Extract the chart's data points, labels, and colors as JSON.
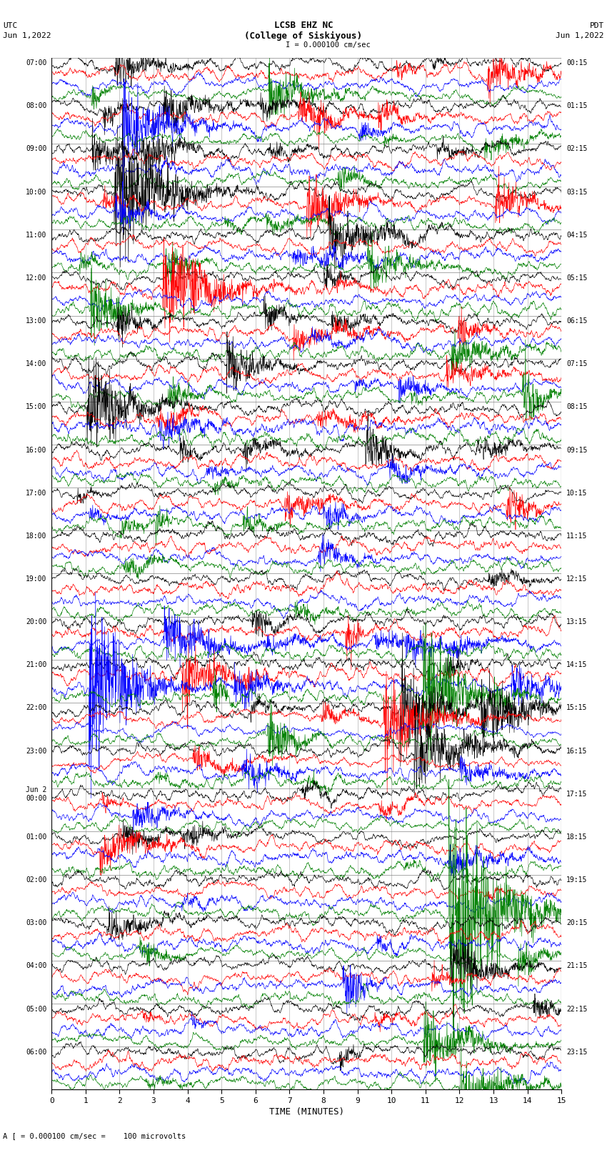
{
  "title_line1": "LCSB EHZ NC",
  "title_line2": "(College of Siskiyous)",
  "label_left_top": "UTC",
  "label_left_date": "Jun 1,2022",
  "label_right_top": "PDT",
  "label_right_date": "Jun 1,2022",
  "scale_text": "I = 0.000100 cm/sec",
  "bottom_text": "A [ = 0.000100 cm/sec =    100 microvolts",
  "xlabel": "TIME (MINUTES)",
  "xmin": 0,
  "xmax": 15,
  "xticks": [
    0,
    1,
    2,
    3,
    4,
    5,
    6,
    7,
    8,
    9,
    10,
    11,
    12,
    13,
    14,
    15
  ],
  "colors": [
    "black",
    "red",
    "blue",
    "green"
  ],
  "n_rows": 24,
  "traces_per_row": 4,
  "fig_width": 8.5,
  "fig_height": 16.13,
  "dpi": 100,
  "left_times_utc": [
    "07:00",
    "08:00",
    "09:00",
    "10:00",
    "11:00",
    "12:00",
    "13:00",
    "14:00",
    "15:00",
    "16:00",
    "17:00",
    "18:00",
    "19:00",
    "20:00",
    "21:00",
    "22:00",
    "23:00",
    "Jun 2\n00:00",
    "01:00",
    "02:00",
    "03:00",
    "04:00",
    "05:00",
    "06:00"
  ],
  "right_times_pdt": [
    "00:15",
    "01:15",
    "02:15",
    "03:15",
    "04:15",
    "05:15",
    "06:15",
    "07:15",
    "08:15",
    "09:15",
    "10:15",
    "11:15",
    "12:15",
    "13:15",
    "14:15",
    "15:15",
    "16:15",
    "17:15",
    "18:15",
    "19:15",
    "20:15",
    "21:15",
    "22:15",
    "23:15"
  ],
  "noise_seed": 42,
  "background_color": "white",
  "grid_color": "#888888",
  "border_color": "black",
  "trace_lw": 0.45,
  "n_points": 1800
}
